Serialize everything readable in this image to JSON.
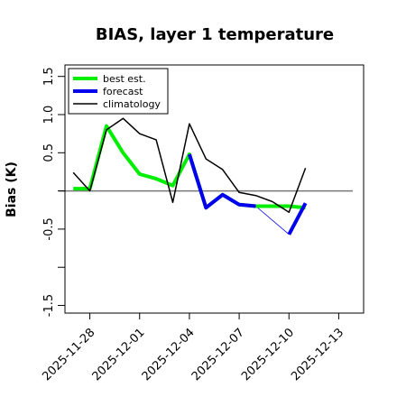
{
  "chart_data": {
    "type": "line",
    "title": "BIAS, layer 1 temperature",
    "ylabel": "Bias (K)",
    "xlabel": "",
    "ylim": [
      -1.6,
      1.65
    ],
    "xlim": [
      "2025-11-26T12:00",
      "2025-12-14T12:00"
    ],
    "y_ticks": [
      -1.5,
      -1.0,
      -0.5,
      0.0,
      0.5,
      1.0,
      1.5
    ],
    "y_tick_labels": [
      "-1.5",
      "",
      "-0.5",
      "",
      "0.5",
      "1.0",
      "1.5"
    ],
    "x_ticks": [
      "2025-11-28",
      "2025-12-01",
      "2025-12-04",
      "2025-12-07",
      "2025-12-10",
      "2025-12-13"
    ],
    "x_tick_labels": [
      "2025-11-28",
      "2025-12-01",
      "2025-12-04",
      "2025-12-07",
      "2025-12-10",
      "2025-12-13"
    ],
    "x_tick_colors": [
      "#000000",
      "#000000",
      "#228B22",
      "#000000",
      "#000000",
      "#000000"
    ],
    "zero_line": 0.0,
    "legend": {
      "position": "top-left",
      "entries": [
        "best est.",
        "forecast",
        "climatology"
      ]
    },
    "series": [
      {
        "name": "best est.",
        "color": "#00ee00",
        "x": [
          "2025-11-27T00:00",
          "2025-11-28T00:00",
          "2025-11-29T00:00",
          "2025-11-30T00:00",
          "2025-12-01T00:00",
          "2025-12-02T00:00",
          "2025-12-03T00:00",
          "2025-12-04T00:00",
          "2025-12-05T00:00",
          "2025-12-06T00:00",
          "2025-12-07T00:00",
          "2025-12-08T00:00",
          "2025-12-09T00:00",
          "2025-12-10T00:00",
          "2025-12-11T00:00"
        ],
        "values": [
          0.03,
          0.03,
          0.85,
          0.5,
          0.22,
          0.16,
          0.07,
          0.48,
          -0.22,
          -0.05,
          -0.18,
          -0.2,
          -0.2,
          -0.2,
          -0.22
        ]
      },
      {
        "name": "forecast",
        "color": "#0000ee",
        "segments": [
          {
            "x": [
              "2025-12-04T00:00",
              "2025-12-05T00:00",
              "2025-12-06T00:00",
              "2025-12-07T00:00",
              "2025-12-08T00:00"
            ],
            "values": [
              0.48,
              -0.22,
              -0.05,
              -0.18,
              -0.2
            ]
          },
          {
            "x": [
              "2025-12-10T00:00",
              "2025-12-11T00:00"
            ],
            "values": [
              -0.57,
              -0.16
            ]
          }
        ]
      },
      {
        "name": "climatology",
        "color": "#000000",
        "x": [
          "2025-11-27T00:00",
          "2025-11-28T00:00",
          "2025-11-29T00:00",
          "2025-11-30T00:00",
          "2025-12-01T00:00",
          "2025-12-02T00:00",
          "2025-12-03T00:00",
          "2025-12-04T00:00",
          "2025-12-05T00:00",
          "2025-12-06T00:00",
          "2025-12-07T00:00",
          "2025-12-08T00:00",
          "2025-12-09T00:00",
          "2025-12-10T00:00",
          "2025-12-11T00:00"
        ],
        "values": [
          0.24,
          0.0,
          0.8,
          0.95,
          0.75,
          0.67,
          -0.15,
          0.88,
          0.42,
          0.28,
          -0.02,
          -0.06,
          -0.14,
          -0.28,
          0.3
        ]
      }
    ]
  }
}
